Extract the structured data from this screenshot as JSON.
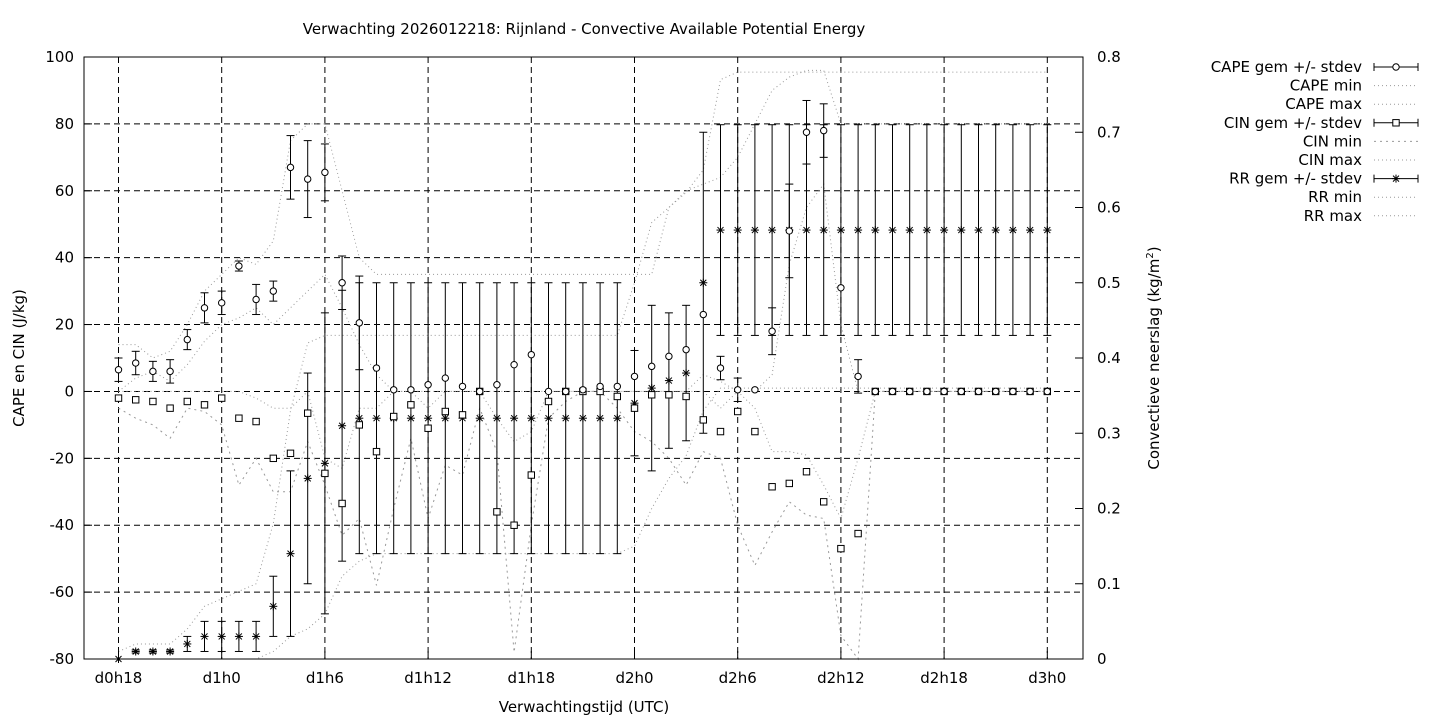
{
  "chart_data": {
    "type": "line",
    "title": "Verwachting 2026012218: Rijnland - Convective Available Potential Energy",
    "xlabel": "Verwachtingstijd (UTC)",
    "ylabel_left": "CAPE en CIN (J/kg)",
    "ylabel_right_main": "Convectieve neerslag (kg/m",
    "ylabel_right_sup": "2",
    "ylabel_right_end": ")",
    "ylim_left": [
      -80,
      100
    ],
    "ylim_right": [
      0,
      0.8
    ],
    "xlim_hours": [
      -1,
      58
    ],
    "grid": true,
    "legend_position": "top-right, outside plot",
    "x_ticks": [
      {
        "label": "d0h18",
        "h": 0
      },
      {
        "label": "d1h0",
        "h": 6
      },
      {
        "label": "d1h6",
        "h": 12
      },
      {
        "label": "d1h12",
        "h": 18
      },
      {
        "label": "d1h18",
        "h": 24
      },
      {
        "label": "d2h0",
        "h": 30
      },
      {
        "label": "d2h6",
        "h": 36
      },
      {
        "label": "d2h12",
        "h": 42
      },
      {
        "label": "d2h18",
        "h": 48
      },
      {
        "label": "d3h0",
        "h": 54
      }
    ],
    "y_ticks_left": [
      "-80",
      "-60",
      "-40",
      "-20",
      "0",
      "20",
      "40",
      "60",
      "80",
      "100"
    ],
    "y_ticks_right": [
      "0",
      "0.1",
      "0.2",
      "0.3",
      "0.4",
      "0.5",
      "0.6",
      "0.7",
      "0.8"
    ],
    "legend": [
      {
        "label": "CAPE gem +/- stdev",
        "style": "errorbar",
        "marker": "circle"
      },
      {
        "label": "CAPE min",
        "style": "dotted"
      },
      {
        "label": "CAPE max",
        "style": "dotted"
      },
      {
        "label": "CIN gem +/- stdev",
        "style": "errorbar",
        "marker": "square"
      },
      {
        "label": "CIN min",
        "style": "dotted-coarse"
      },
      {
        "label": "CIN max",
        "style": "dotted"
      },
      {
        "label": "RR gem +/- stdev",
        "style": "errorbar",
        "marker": "star"
      },
      {
        "label": "RR min",
        "style": "dotted"
      },
      {
        "label": "RR max",
        "style": "dotted"
      }
    ],
    "hours": [
      0,
      1,
      2,
      3,
      4,
      5,
      6,
      7,
      8,
      9,
      10,
      11,
      12,
      13,
      14,
      15,
      16,
      17,
      18,
      19,
      20,
      21,
      22,
      23,
      24,
      25,
      26,
      27,
      28,
      29,
      30,
      31,
      32,
      33,
      34,
      35,
      36,
      37,
      38,
      39,
      40,
      41,
      42,
      43,
      44,
      45,
      46,
      47,
      48,
      49,
      50,
      51,
      52,
      53,
      54
    ],
    "series": [
      {
        "name": "CAPE gem +/- stdev",
        "axis": "left",
        "mean": [
          6.5,
          8.5,
          6,
          6,
          15.5,
          25,
          26.5,
          37.5,
          27.5,
          30,
          67,
          63.5,
          65.5,
          32.5,
          20.5,
          7,
          0.5,
          0.5,
          2,
          4,
          1.5,
          0,
          2,
          8,
          11,
          0,
          0,
          0.5,
          1.5,
          1.5,
          4.5,
          7.5,
          10.5,
          12.5,
          23,
          7,
          0.5,
          0.5,
          18,
          48,
          77.5,
          78,
          31,
          4.5,
          0,
          0,
          0,
          0,
          0,
          0,
          0,
          0,
          0,
          0,
          0
        ],
        "stdev": [
          3.5,
          3.5,
          3,
          3.5,
          3,
          4.5,
          3.5,
          1.5,
          4.5,
          3,
          9.5,
          11.5,
          8.5,
          8,
          14,
          0,
          0,
          0,
          0,
          0,
          0,
          0,
          0,
          0,
          0,
          0,
          0,
          0,
          0,
          0,
          0,
          0,
          0,
          0,
          0,
          3.5,
          3.5,
          0,
          7,
          14,
          9.5,
          8,
          0,
          5,
          0,
          0,
          0,
          0,
          0,
          0,
          0,
          0,
          0,
          0,
          0
        ]
      },
      {
        "name": "CAPE min",
        "axis": "left",
        "values": [
          0,
          4,
          6,
          3,
          8,
          15,
          20,
          22,
          25,
          20,
          25,
          30,
          35,
          25,
          14,
          5,
          0,
          0,
          0,
          0,
          0,
          0,
          0,
          0,
          0,
          0,
          0,
          0,
          0,
          0,
          0,
          0,
          0,
          0,
          5,
          3,
          0,
          0,
          5,
          38,
          55,
          62,
          20,
          0,
          0,
          0,
          0,
          0,
          0,
          0,
          0,
          0,
          0,
          0,
          0
        ]
      },
      {
        "name": "CAPE max",
        "axis": "left",
        "values": [
          14,
          14,
          10,
          12,
          20,
          30,
          35,
          40,
          38,
          45,
          75,
          80,
          80,
          60,
          40,
          35,
          35,
          35,
          35,
          35,
          35,
          35,
          35,
          35,
          35,
          35,
          35,
          35,
          35,
          35,
          35,
          35,
          55,
          60,
          62,
          64,
          70,
          80,
          90,
          94,
          96,
          96,
          80,
          80,
          80,
          80,
          80,
          80,
          80,
          80,
          80,
          80,
          80,
          80,
          80
        ]
      },
      {
        "name": "CIN gem +/- stdev",
        "axis": "left",
        "mean": [
          -2,
          -2.5,
          -3,
          -5,
          -3,
          -4,
          -2,
          -8,
          -9,
          -20,
          -18.5,
          -6.5,
          -24.5,
          -33.5,
          -10,
          -18,
          -7.5,
          -4,
          -11,
          -6,
          -7,
          0,
          -36,
          -40,
          -25,
          -3,
          0,
          0,
          0,
          -1.5,
          -5,
          -1,
          -1,
          -1.5,
          -8.5,
          -12,
          -6,
          -12,
          -28.5,
          -27.5,
          -24,
          -33,
          -47,
          -42.5,
          0,
          0,
          0,
          0,
          0,
          0,
          0,
          0,
          0,
          0,
          0
        ]
      },
      {
        "name": "CIN min",
        "axis": "left",
        "values": [
          -5,
          -8,
          -10,
          -14,
          -5,
          -6,
          -10,
          -28,
          -20,
          -30,
          -30,
          -15,
          -28,
          -43,
          -38,
          -58,
          -35,
          -14,
          -38,
          -22,
          -25,
          -5,
          -18,
          -78,
          -40,
          -8,
          -3,
          0,
          0,
          -5,
          -12,
          -15,
          -20,
          -28,
          -18,
          -20,
          -40,
          -52,
          -42,
          -33,
          -37,
          -38,
          -73,
          -80,
          0,
          0,
          0,
          0,
          0,
          0,
          0,
          0,
          0,
          0,
          0
        ]
      },
      {
        "name": "CIN max",
        "axis": "left",
        "values": [
          0,
          0,
          0,
          0,
          0,
          0,
          0,
          0,
          -2,
          -5,
          -5,
          0,
          -20,
          -23,
          -5,
          -5,
          0,
          0,
          -5,
          0,
          0,
          0,
          -8,
          -15,
          -12,
          0,
          0,
          0,
          0,
          0,
          0,
          0,
          0,
          0,
          0,
          -5,
          0,
          -5,
          -18,
          -18,
          -19,
          -28,
          -38,
          -20,
          0,
          0,
          0,
          0,
          0,
          0,
          0,
          0,
          0,
          0,
          0
        ]
      },
      {
        "name": "RR gem +/- stdev",
        "axis": "right",
        "mean": [
          0,
          0.01,
          0.01,
          0.01,
          0.02,
          0.03,
          0.03,
          0.03,
          0.03,
          0.07,
          0.14,
          0.24,
          0.26,
          0.31,
          0.32,
          0.32,
          0.32,
          0.32,
          0.32,
          0.32,
          0.32,
          0.32,
          0.32,
          0.32,
          0.32,
          0.32,
          0.32,
          0.32,
          0.32,
          0.32,
          0.34,
          0.36,
          0.37,
          0.38,
          0.5,
          0.57,
          0.57,
          0.57,
          0.57,
          0.57,
          0.57,
          0.57,
          0.57,
          0.57,
          0.57,
          0.57,
          0.57,
          0.57,
          0.57,
          0.57,
          0.57,
          0.57,
          0.57,
          0.57,
          0.57
        ],
        "stdev": [
          0,
          0.002,
          0.002,
          0.002,
          0.01,
          0.02,
          0.02,
          0.02,
          0.02,
          0.04,
          0.11,
          0.14,
          0.2,
          0.18,
          0.18,
          0.18,
          0.18,
          0.18,
          0.18,
          0.18,
          0.18,
          0.18,
          0.18,
          0.18,
          0.18,
          0.18,
          0.18,
          0.18,
          0.18,
          0.18,
          0.07,
          0.11,
          0.09,
          0.09,
          0.2,
          0.14,
          0.14,
          0.14,
          0.14,
          0.14,
          0.14,
          0.14,
          0.14,
          0.14,
          0.14,
          0.14,
          0.14,
          0.14,
          0.14,
          0.14,
          0.14,
          0.14,
          0.14,
          0.14,
          0.14
        ]
      },
      {
        "name": "RR min",
        "axis": "right",
        "values": [
          0,
          0,
          0,
          0,
          0,
          0,
          0,
          0,
          0,
          0.01,
          0.03,
          0.04,
          0.06,
          0.11,
          0.13,
          0.14,
          0.14,
          0.14,
          0.14,
          0.14,
          0.14,
          0.14,
          0.14,
          0.14,
          0.14,
          0.14,
          0.14,
          0.14,
          0.14,
          0.14,
          0.15,
          0.2,
          0.24,
          0.27,
          0.33,
          0.36,
          0.36,
          0.36,
          0.36,
          0.36,
          0.36,
          0.36,
          0.36,
          0.36,
          0.36,
          0.36,
          0.36,
          0.36,
          0.36,
          0.36,
          0.36,
          0.36,
          0.36,
          0.36,
          0.36
        ]
      },
      {
        "name": "RR max",
        "axis": "right",
        "values": [
          0.01,
          0.02,
          0.02,
          0.02,
          0.04,
          0.07,
          0.08,
          0.09,
          0.1,
          0.18,
          0.33,
          0.42,
          0.43,
          0.43,
          0.43,
          0.43,
          0.43,
          0.43,
          0.43,
          0.43,
          0.43,
          0.43,
          0.43,
          0.43,
          0.43,
          0.43,
          0.43,
          0.43,
          0.43,
          0.43,
          0.5,
          0.58,
          0.6,
          0.62,
          0.65,
          0.77,
          0.78,
          0.78,
          0.78,
          0.78,
          0.78,
          0.78,
          0.78,
          0.78,
          0.78,
          0.78,
          0.78,
          0.78,
          0.78,
          0.78,
          0.78,
          0.78,
          0.78,
          0.78,
          0.78
        ]
      }
    ]
  }
}
